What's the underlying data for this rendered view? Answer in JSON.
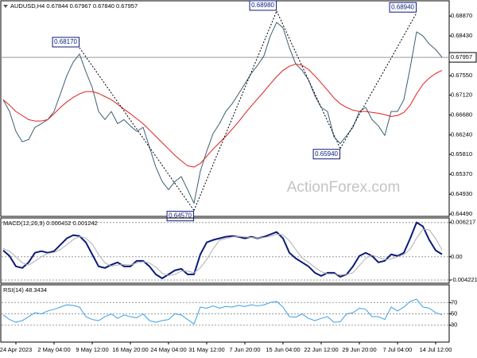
{
  "chart_data": [
    {
      "type": "line",
      "title": "AUDUSD,H4  0.67844 0.67967 0.67840 0.67957",
      "watermark": "ActionForex.com",
      "ylim": [
        0.6444,
        0.6919
      ],
      "yticks": [
        {
          "value": 0.6887,
          "label": "0.68870"
        },
        {
          "value": 0.6843,
          "label": "0.68430"
        },
        {
          "value": 0.6755,
          "label": "0.67550"
        },
        {
          "value": 0.6712,
          "label": "0.67120"
        },
        {
          "value": 0.6668,
          "label": "0.66680"
        },
        {
          "value": 0.6624,
          "label": "0.66240"
        },
        {
          "value": 0.6581,
          "label": "0.65810"
        },
        {
          "value": 0.6537,
          "label": "0.65370"
        },
        {
          "value": 0.6493,
          "label": "0.64930"
        },
        {
          "value": 0.6449,
          "label": "0.64490"
        }
      ],
      "series": [
        {
          "color": "#3b5f73",
          "width": 1,
          "values": [
            0.6702,
            0.6676,
            0.6632,
            0.6609,
            0.6614,
            0.6641,
            0.6649,
            0.6658,
            0.6676,
            0.6715,
            0.6755,
            0.6785,
            0.6803,
            0.6764,
            0.6729,
            0.6676,
            0.6658,
            0.6676,
            0.6649,
            0.6658,
            0.6644,
            0.6632,
            0.6641,
            0.6597,
            0.6553,
            0.6521,
            0.6503,
            0.6521,
            0.6532,
            0.6503,
            0.6473,
            0.6544,
            0.6588,
            0.6627,
            0.6649,
            0.6676,
            0.6693,
            0.6715,
            0.6737,
            0.676,
            0.6778,
            0.6799,
            0.6843,
            0.6873,
            0.6861,
            0.6817,
            0.6781,
            0.6767,
            0.6746,
            0.6711,
            0.6685,
            0.6676,
            0.662,
            0.6605,
            0.6623,
            0.6641,
            0.6676,
            0.6685,
            0.6658,
            0.6644,
            0.6623,
            0.6676,
            0.6676,
            0.6702,
            0.6773,
            0.6852,
            0.6843,
            0.6825,
            0.6813,
            0.6796
          ]
        },
        {
          "color": "#e0201c",
          "width": 1,
          "values": [
            0.6702,
            0.669,
            0.6676,
            0.6667,
            0.6658,
            0.6655,
            0.6655,
            0.6658,
            0.6671,
            0.6685,
            0.6697,
            0.6707,
            0.6715,
            0.672,
            0.672,
            0.6716,
            0.6709,
            0.6702,
            0.6692,
            0.6681,
            0.6671,
            0.666,
            0.6649,
            0.6635,
            0.6621,
            0.6607,
            0.6593,
            0.6579,
            0.6567,
            0.6556,
            0.6553,
            0.6561,
            0.6577,
            0.6593,
            0.6607,
            0.6621,
            0.6637,
            0.6653,
            0.6671,
            0.6688,
            0.6704,
            0.672,
            0.6737,
            0.6753,
            0.6767,
            0.6776,
            0.6781,
            0.6778,
            0.6769,
            0.6755,
            0.6739,
            0.6723,
            0.6706,
            0.6693,
            0.6685,
            0.6679,
            0.6676,
            0.6676,
            0.6674,
            0.6672,
            0.6669,
            0.6665,
            0.6667,
            0.6674,
            0.669,
            0.6715,
            0.6736,
            0.675,
            0.676,
            0.6767
          ]
        }
      ],
      "last_price": {
        "value": 0.67957,
        "label": "0.67957"
      },
      "annotations": [
        {
          "index": 12,
          "value": 0.6817,
          "label": "0.68170"
        },
        {
          "index": 30,
          "value": 0.6457,
          "label": "0.64570"
        },
        {
          "index": 43,
          "value": 0.6898,
          "label": "0.68980"
        },
        {
          "index": 53,
          "value": 0.6594,
          "label": "0.65940"
        },
        {
          "index": 65,
          "value": 0.6894,
          "label": "0.68940"
        }
      ]
    },
    {
      "type": "line",
      "title": "MACD(12,26,9) 0.000452 0.001242",
      "ylim": [
        -0.0048,
        0.0069
      ],
      "yticks": [
        0.006217,
        {
          "value": 0,
          "label": "0.00"
        },
        -0.004221
      ],
      "grid": true,
      "series": [
        {
          "color": "#0b1a7a",
          "width": 2,
          "values": [
            0.00116,
            0.00015,
            -0.00174,
            -0.00203,
            -0.00102,
            0.00073,
            0.00102,
            0.00073,
            0.00102,
            0.00218,
            0.00334,
            0.00392,
            0.00377,
            0.00261,
            0.00044,
            -0.00174,
            -0.00203,
            -0.00145,
            -0.00102,
            -0.00174,
            -0.00174,
            -0.00073,
            -0.00073,
            -0.00174,
            -0.00319,
            -0.00392,
            -0.00319,
            -0.00247,
            -0.00218,
            -0.00319,
            -0.00319,
            0.00044,
            0.00261,
            0.00305,
            0.00334,
            0.00363,
            0.00377,
            0.00363,
            0.00334,
            0.00363,
            0.00334,
            0.00363,
            0.00406,
            0.0045,
            0.00334,
            0.00073,
            -0.00029,
            -0.00102,
            -0.00174,
            -0.0029,
            -0.00348,
            -0.0029,
            -0.0029,
            -0.00363,
            -0.00319,
            -0.00174,
            0.00015,
            0.00073,
            0.00015,
            -0.00102,
            -0.00073,
            0.00044,
            0.00015,
            0.00073,
            0.00334,
            0.00624,
            0.00551,
            0.00305,
            0.00116,
            0.00045
          ]
        },
        {
          "color": "#b0b0b0",
          "width": 1,
          "values": [
            0.0015,
            0.001,
            0,
            -0.0011,
            -0.0015,
            -0.0008,
            0,
            0.0006,
            0.0008,
            0.0013,
            0.0022,
            0.0031,
            0.0037,
            0.0034,
            0.0023,
            0.0004,
            -0.0011,
            -0.0017,
            -0.0015,
            -0.0014,
            -0.0015,
            -0.0011,
            -0.0009,
            -0.0011,
            -0.0019,
            -0.003,
            -0.0034,
            -0.0032,
            -0.0026,
            -0.0026,
            -0.0029,
            -0.002,
            -0.0005,
            0.0014,
            0.003,
            0.0033,
            0.0036,
            0.0037,
            0.0036,
            0.0035,
            0.0034,
            0.0035,
            0.0037,
            0.0041,
            0.004,
            0.0029,
            0.0013,
            -0.0002,
            -0.001,
            -0.0019,
            -0.0027,
            -0.0031,
            -0.0031,
            -0.0033,
            -0.0032,
            -0.0029,
            -0.0016,
            -0.0003,
            0.0003,
            -0.0001,
            -0.0005,
            -0.0004,
            0,
            0.0004,
            0.0014,
            0.0034,
            0.005,
            0.0049,
            0.0033,
            0.00124
          ]
        }
      ]
    },
    {
      "type": "line",
      "title": "RSI(14) 48.3434",
      "ylim": [
        0,
        100
      ],
      "yticks": [
        70,
        50,
        30
      ],
      "grid": true,
      "categories": [
        null,
        null,
        "24 Apr 2023",
        null,
        null,
        null,
        null,
        null,
        "2 May 04:00",
        null,
        null,
        null,
        null,
        null,
        "9 May 12:00",
        null,
        null,
        null,
        null,
        null,
        "16 May 20:00",
        null,
        null,
        null,
        null,
        null,
        "24 May 04:00",
        null,
        null,
        null,
        null,
        null,
        "31 May 12:00",
        null,
        null,
        null,
        null,
        null,
        "7 Jun 20:00",
        null,
        null,
        null,
        null,
        null,
        "15 Jun 04:00",
        null,
        null,
        null,
        null,
        null,
        "22 Jun 12:00",
        null,
        null,
        null,
        null,
        null,
        "29 Jun 20:00",
        null,
        null,
        null,
        null,
        null,
        "7 Jul 04:00",
        null,
        null,
        null,
        null,
        null,
        "14 Jul 12:00",
        null
      ],
      "series": [
        {
          "color": "#3aa0e8",
          "width": 1,
          "values": [
            48,
            40,
            35,
            38,
            45,
            52,
            50,
            55,
            58,
            62,
            66,
            65,
            62,
            45,
            40,
            38,
            45,
            50,
            42,
            48,
            45,
            43,
            50,
            38,
            35,
            38,
            40,
            50,
            48,
            40,
            32,
            62,
            60,
            64,
            60,
            63,
            62,
            65,
            63,
            66,
            64,
            66,
            70,
            72,
            62,
            45,
            44,
            50,
            42,
            38,
            42,
            45,
            35,
            36,
            50,
            52,
            60,
            58,
            45,
            45,
            40,
            62,
            55,
            62,
            72,
            76,
            62,
            60,
            52,
            48.3434
          ]
        }
      ]
    }
  ]
}
